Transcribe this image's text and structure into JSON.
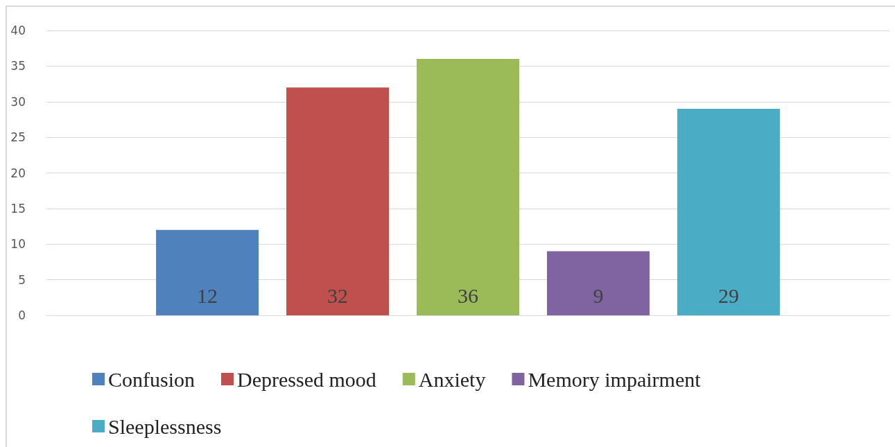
{
  "chart_data": {
    "type": "bar",
    "categories": [
      null
    ],
    "series": [
      {
        "name": "Confusion",
        "color": "#4f81bd",
        "values": [
          12
        ]
      },
      {
        "name": "Depressed mood",
        "color": "#c0504d",
        "values": [
          32
        ]
      },
      {
        "name": "Anxiety",
        "color": "#9bbb59",
        "values": [
          36
        ]
      },
      {
        "name": "Memory impairment",
        "color": "#8064a2",
        "values": [
          9
        ]
      },
      {
        "name": "Sleeplessness",
        "color": "#4bacc6",
        "values": [
          29
        ]
      }
    ],
    "ylim": [
      0,
      40
    ],
    "yticks": [
      0,
      5,
      10,
      15,
      20,
      25,
      30,
      35,
      40
    ],
    "grid": "y",
    "legend": "bottom",
    "data_labels": true
  }
}
